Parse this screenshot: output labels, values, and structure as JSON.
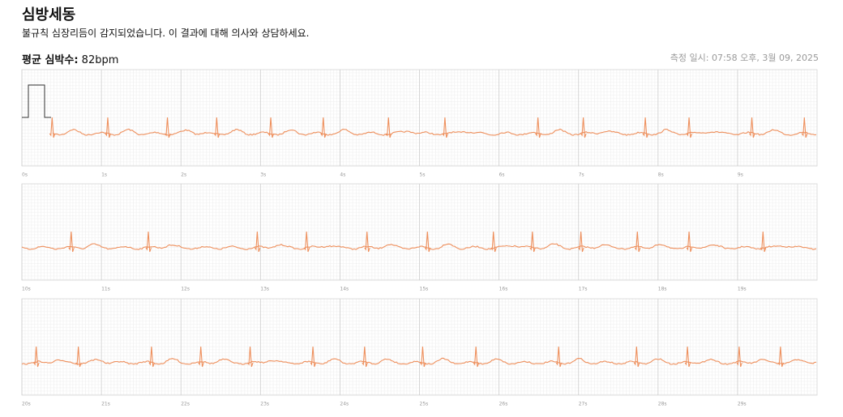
{
  "header": {
    "title": "심방세동",
    "subtitle": "불규칙 심장리듬이 감지되었습니다. 이 결과에 대해 의사와 상담하세요.",
    "heart_rate_label": "평균 심박수:",
    "heart_rate": "82bpm",
    "timestamp": "측정 일시: 07:58 오후, 3월 09, 2025"
  },
  "chart_data": [
    {
      "type": "ecg",
      "color": "#ee8f5c",
      "xlim": [
        0,
        10
      ],
      "xticks": [
        {
          "value": 0,
          "label": "0s"
        },
        {
          "value": 1,
          "label": "1s"
        },
        {
          "value": 2,
          "label": "2s"
        },
        {
          "value": 3,
          "label": "3s"
        },
        {
          "value": 4,
          "label": "4s"
        },
        {
          "value": 5,
          "label": "5s"
        },
        {
          "value": 6,
          "label": "6s"
        },
        {
          "value": 7,
          "label": "7s"
        },
        {
          "value": 8,
          "label": "8s"
        },
        {
          "value": 9,
          "label": "9s"
        }
      ],
      "beats": [
        0.38,
        1.08,
        1.83,
        2.45,
        3.13,
        3.79,
        4.61,
        5.32,
        6.49,
        7.06,
        7.84,
        8.39,
        9.18,
        9.84
      ]
    },
    {
      "type": "ecg",
      "color": "#ee8f5c",
      "xlim": [
        10,
        20
      ],
      "xticks": [
        {
          "value": 10,
          "label": "10s"
        },
        {
          "value": 11,
          "label": "11s"
        },
        {
          "value": 12,
          "label": "12s"
        },
        {
          "value": 13,
          "label": "13s"
        },
        {
          "value": 14,
          "label": "14s"
        },
        {
          "value": 15,
          "label": "15s"
        },
        {
          "value": 16,
          "label": "16s"
        },
        {
          "value": 17,
          "label": "17s"
        },
        {
          "value": 18,
          "label": "18s"
        },
        {
          "value": 19,
          "label": "19s"
        }
      ],
      "beats": [
        10.62,
        11.59,
        12.96,
        13.58,
        14.34,
        15.1,
        15.93,
        16.42,
        17.03,
        17.74,
        18.39,
        19.32
      ]
    },
    {
      "type": "ecg",
      "color": "#ee8f5c",
      "xlim": [
        20,
        30
      ],
      "xticks": [
        {
          "value": 20,
          "label": "20s"
        },
        {
          "value": 21,
          "label": "21s"
        },
        {
          "value": 22,
          "label": "22s"
        },
        {
          "value": 23,
          "label": "23s"
        },
        {
          "value": 24,
          "label": "24s"
        },
        {
          "value": 25,
          "label": "25s"
        },
        {
          "value": 26,
          "label": "26s"
        },
        {
          "value": 27,
          "label": "27s"
        },
        {
          "value": 28,
          "label": "28s"
        },
        {
          "value": 29,
          "label": "29s"
        }
      ],
      "beats": [
        20.18,
        20.71,
        21.63,
        22.25,
        22.87,
        23.66,
        24.31,
        25.04,
        25.71,
        26.75,
        27.73,
        28.37,
        29.02,
        29.54
      ]
    }
  ]
}
